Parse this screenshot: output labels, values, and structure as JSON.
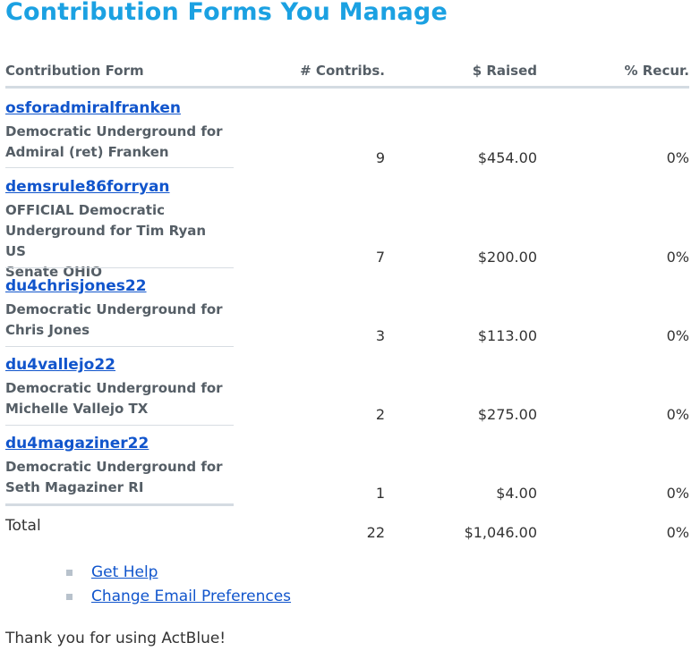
{
  "page_title": "Contribution Forms You Manage",
  "columns": {
    "form": "Contribution Form",
    "contribs": "# Contribs.",
    "raised": "$ Raised",
    "recur": "% Recur."
  },
  "rows": [
    {
      "name": "osforadmiralfranken",
      "desc": "Democratic Underground for\nAdmiral (ret) Franken",
      "contribs": "9",
      "raised": "$454.00",
      "recur": "0%"
    },
    {
      "name": "demsrule86forryan",
      "desc": "OFFICIAL Democratic\nUnderground for Tim Ryan US\nSenate OHIO",
      "contribs": "7",
      "raised": "$200.00",
      "recur": "0%"
    },
    {
      "name": "du4chrisjones22",
      "desc": "Democratic Underground for\nChris Jones",
      "contribs": "3",
      "raised": "$113.00",
      "recur": "0%"
    },
    {
      "name": "du4vallejo22",
      "desc": "Democratic Underground for\nMichelle Vallejo TX",
      "contribs": "2",
      "raised": "$275.00",
      "recur": "0%"
    },
    {
      "name": "du4magaziner22",
      "desc": "Democratic Underground for\nSeth Magaziner RI",
      "contribs": "1",
      "raised": "$4.00",
      "recur": "0%"
    }
  ],
  "total": {
    "label": "Total",
    "contribs": "22",
    "raised": "$1,046.00",
    "recur": "0%"
  },
  "links": [
    "Get Help",
    "Change Email Preferences"
  ],
  "footer": "Thank you for using ActBlue!",
  "colors": {
    "title": "#1ba1e2",
    "link": "#1155cc",
    "rule": "#d4dbe2"
  }
}
